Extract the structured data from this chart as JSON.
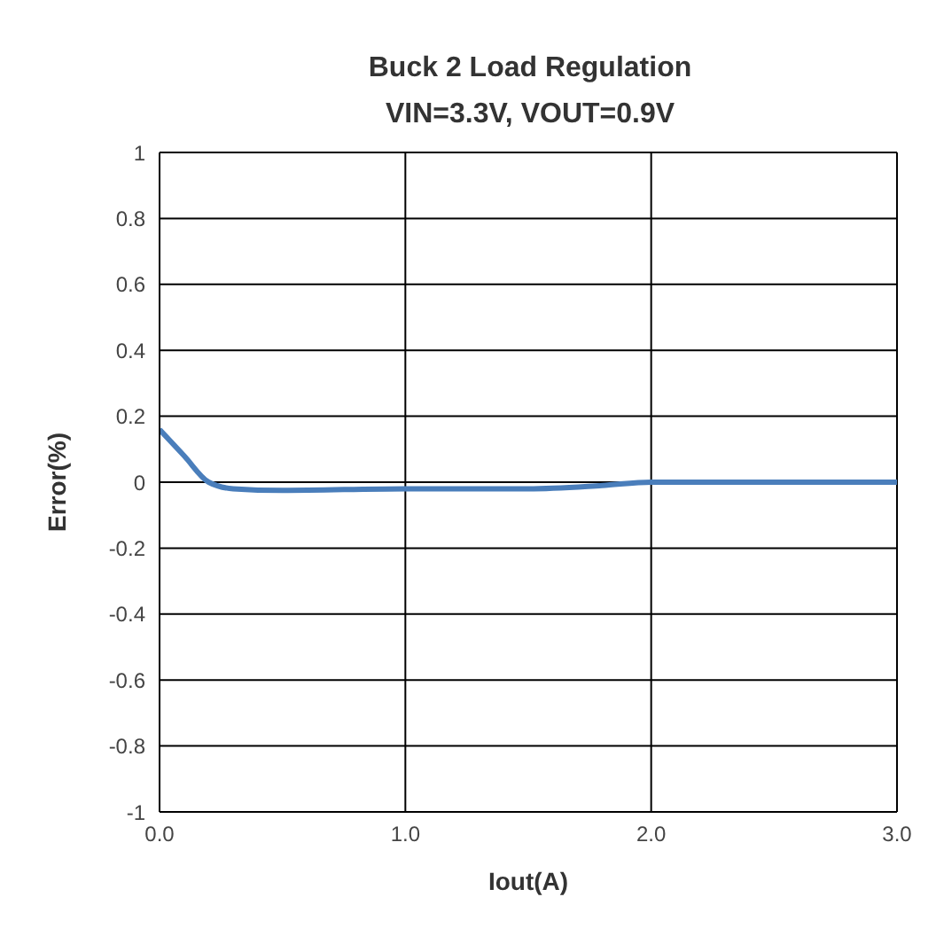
{
  "chart_data": {
    "type": "line",
    "title": "Buck 2 Load Regulation",
    "subtitle": "VIN=3.3V, VOUT=0.9V",
    "xlabel": "Iout(A)",
    "ylabel": "Error(%)",
    "x": [
      0,
      0.1,
      0.2,
      0.3,
      0.5,
      1.0,
      1.5,
      1.8,
      2.0,
      2.5,
      3.0
    ],
    "series": [
      {
        "color": "#4a7ebb",
        "values": [
          0.16,
          0.08,
          0.0,
          -0.02,
          -0.025,
          -0.02,
          -0.02,
          -0.01,
          0,
          0,
          0
        ]
      }
    ],
    "xlim": [
      0,
      3
    ],
    "xticks": [
      {
        "value": 0,
        "label": "0.0"
      },
      {
        "value": 1,
        "label": "1.0"
      },
      {
        "value": 2,
        "label": "2.0"
      },
      {
        "value": 3,
        "label": "3.0"
      }
    ],
    "ylim": [
      -1,
      1
    ],
    "yticks": [
      -1,
      -0.8,
      -0.6,
      -0.4,
      -0.2,
      0,
      0.2,
      0.4,
      0.6,
      0.8,
      1
    ],
    "grid": true,
    "legend": false,
    "marker": "none",
    "line_style": "solid"
  }
}
